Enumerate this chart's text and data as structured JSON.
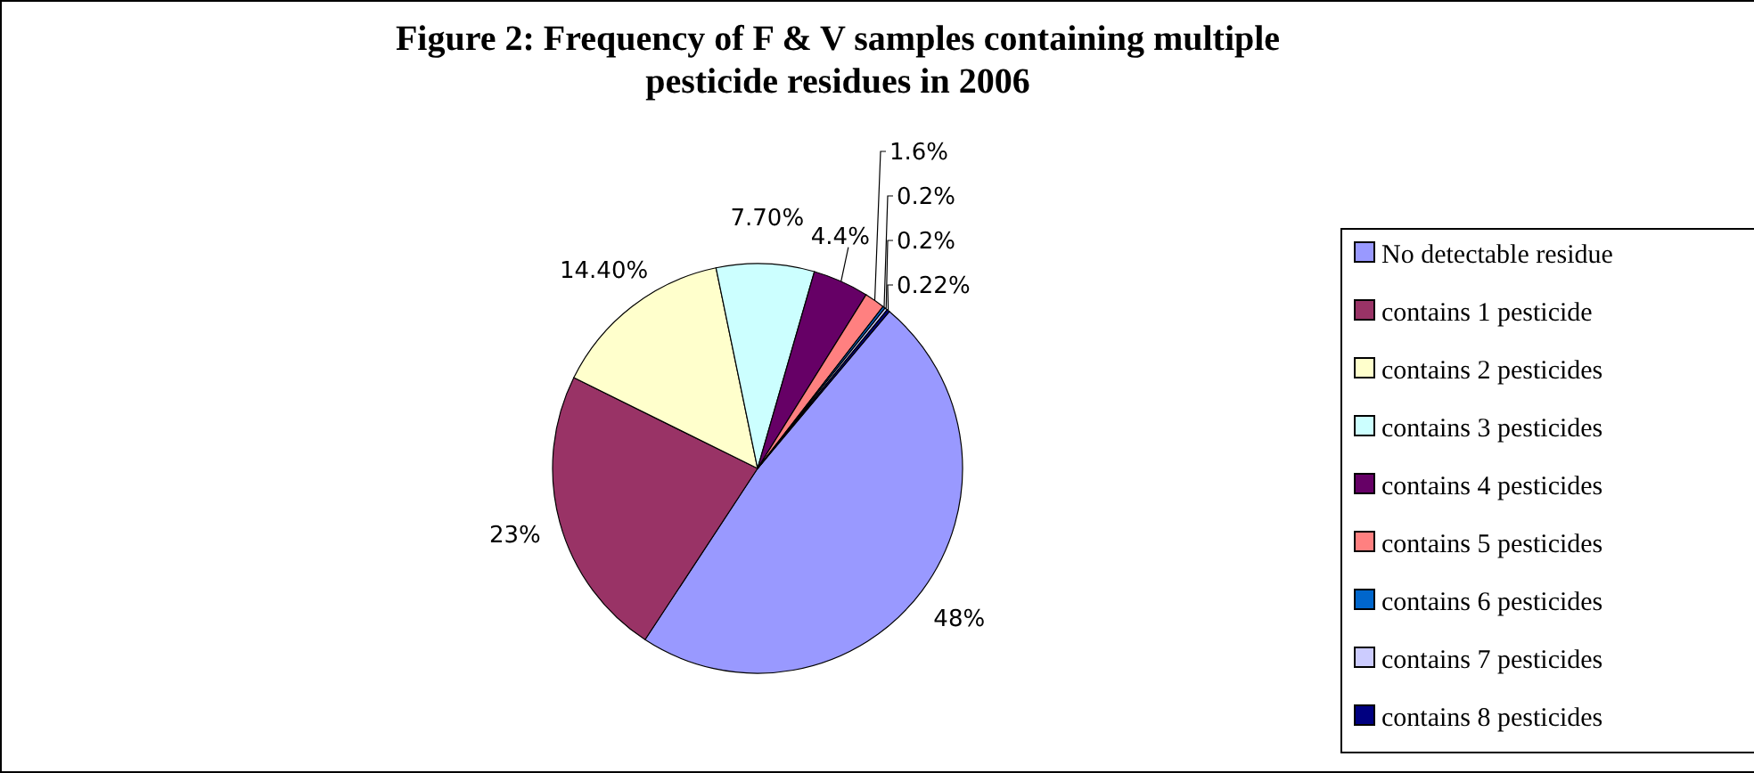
{
  "chart_data": {
    "type": "pie",
    "title": "Figure 2: Frequency of F & V samples containing multiple pesticide residues in 2006",
    "categories": [
      "No detectable residue",
      "contains 1 pesticide",
      "contains 2 pesticides",
      "contains 3 pesticides",
      "contains 4 pesticides",
      "contains 5 pesticides",
      "contains 6 pesticides",
      "contains 7 pesticides",
      "contains 8 pesticides"
    ],
    "values": [
      48,
      23,
      14.4,
      7.7,
      4.4,
      1.6,
      0.2,
      0.2,
      0.22
    ],
    "value_labels": [
      "48%",
      "23%",
      "14.40%",
      "7.70%",
      "4.4%",
      "1.6%",
      "0.2%",
      "0.2%",
      "0.22%"
    ],
    "colors": [
      "#9999ff",
      "#993366",
      "#ffffcc",
      "#ccffff",
      "#660066",
      "#ff8080",
      "#0066cc",
      "#ccccff",
      "#000080"
    ],
    "legend": "right"
  }
}
